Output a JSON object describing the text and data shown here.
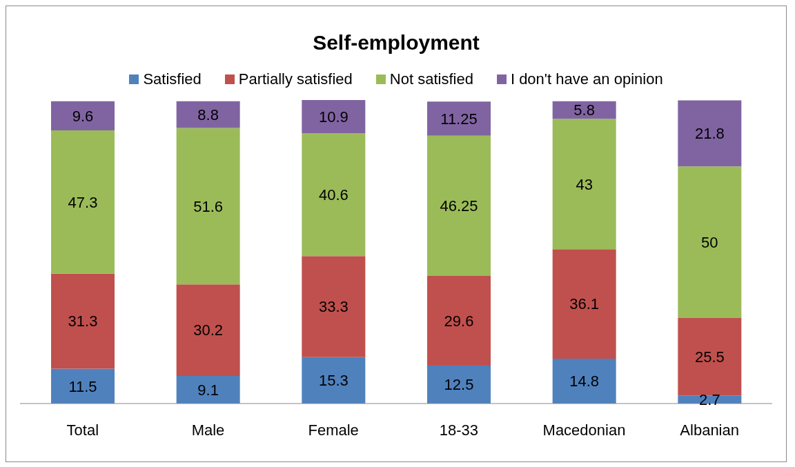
{
  "chart_data": {
    "type": "bar",
    "title": "Self-employment",
    "stacked": true,
    "data_labels": true,
    "legend": "top",
    "grid": false,
    "categories": [
      "Total",
      "Male",
      "Female",
      "18-33",
      "Macedonian",
      "Albanian"
    ],
    "series": [
      {
        "name": "Satisfied",
        "color": "#4f81bd",
        "values": [
          11.5,
          9.1,
          15.3,
          12.5,
          14.8,
          2.7
        ]
      },
      {
        "name": "Partially satisfied",
        "color": "#c0504d",
        "values": [
          31.3,
          30.2,
          33.3,
          29.6,
          36.1,
          25.5
        ]
      },
      {
        "name": "Not satisfied",
        "color": "#9bbb59",
        "values": [
          47.3,
          51.6,
          40.6,
          46.25,
          43,
          50
        ]
      },
      {
        "name": "I don't have an opinion",
        "color": "#8064a2",
        "values": [
          9.6,
          8.8,
          10.9,
          11.25,
          5.8,
          21.8
        ]
      }
    ]
  }
}
